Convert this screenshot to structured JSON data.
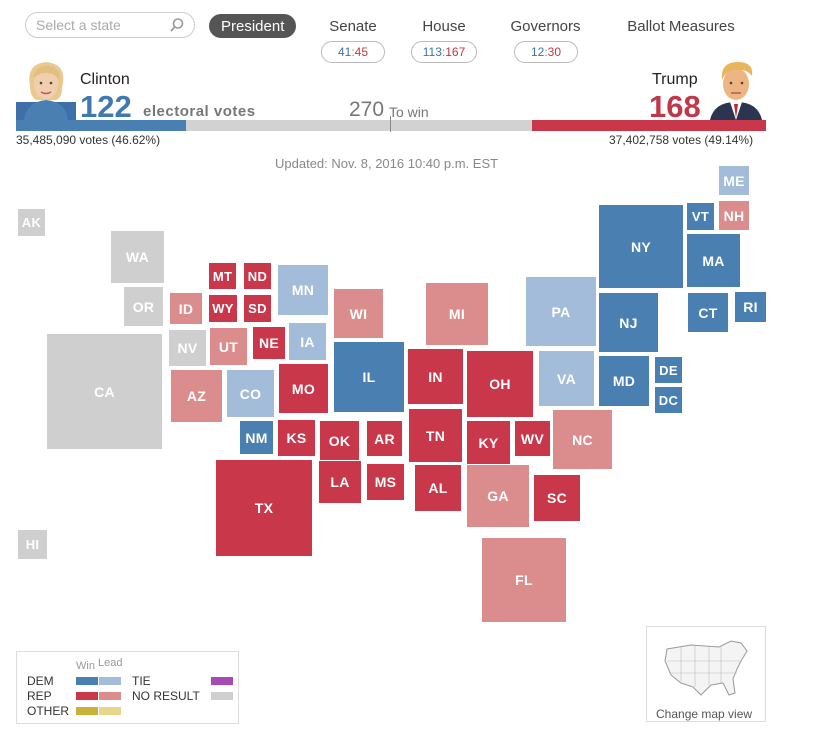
{
  "search": {
    "placeholder": "Select a state"
  },
  "tabs": [
    {
      "label": "President",
      "active": true
    },
    {
      "label": "Senate",
      "dem": "41",
      "rep": "45"
    },
    {
      "label": "House",
      "dem": "113",
      "rep": "167"
    },
    {
      "label": "Governors",
      "dem": "12",
      "rep": "30"
    },
    {
      "label": "Ballot Measures"
    }
  ],
  "pill_separator": ":",
  "dem_candidate": {
    "name": "Clinton",
    "electoral": "122",
    "popular": "35,485,090 votes (46.62%)",
    "electoral_share": 0.2267
  },
  "rep_candidate": {
    "name": "Trump",
    "electoral": "168",
    "popular": "37,402,758 votes (49.14%)",
    "electoral_share": 0.3123
  },
  "electoral_label": "electoral votes",
  "to_win": {
    "number": "270",
    "label": "To win"
  },
  "updated": "Updated: Nov. 8, 2016 10:40 p.m. EST",
  "colors": {
    "dem_win": "#4a7fb1",
    "dem_lead": "#a3bcd9",
    "rep_win": "#c9384a",
    "rep_lead": "#db8d8d",
    "other_win": "#c9b23a",
    "other_lead": "#e6d58a",
    "tie": "#a54bb3",
    "no_result": "#cfcfcf"
  },
  "states": [
    {
      "abbr": "ME",
      "status": "dem_lead"
    },
    {
      "abbr": "VT",
      "status": "dem_win"
    },
    {
      "abbr": "NH",
      "status": "rep_lead"
    },
    {
      "abbr": "NY",
      "status": "dem_win"
    },
    {
      "abbr": "MA",
      "status": "dem_win"
    },
    {
      "abbr": "WA",
      "status": "no_result"
    },
    {
      "abbr": "MT",
      "status": "rep_win"
    },
    {
      "abbr": "ND",
      "status": "rep_win"
    },
    {
      "abbr": "MN",
      "status": "dem_lead"
    },
    {
      "abbr": "OR",
      "status": "no_result"
    },
    {
      "abbr": "ID",
      "status": "rep_lead"
    },
    {
      "abbr": "WY",
      "status": "rep_win"
    },
    {
      "abbr": "SD",
      "status": "rep_win"
    },
    {
      "abbr": "WI",
      "status": "rep_lead"
    },
    {
      "abbr": "MI",
      "status": "rep_lead"
    },
    {
      "abbr": "PA",
      "status": "dem_lead"
    },
    {
      "abbr": "NJ",
      "status": "dem_win"
    },
    {
      "abbr": "CT",
      "status": "dem_win"
    },
    {
      "abbr": "RI",
      "status": "dem_win"
    },
    {
      "abbr": "CA",
      "status": "no_result"
    },
    {
      "abbr": "NV",
      "status": "no_result"
    },
    {
      "abbr": "UT",
      "status": "rep_lead"
    },
    {
      "abbr": "NE",
      "status": "rep_win"
    },
    {
      "abbr": "IA",
      "status": "dem_lead"
    },
    {
      "abbr": "IL",
      "status": "dem_win"
    },
    {
      "abbr": "IN",
      "status": "rep_win"
    },
    {
      "abbr": "OH",
      "status": "rep_win"
    },
    {
      "abbr": "VA",
      "status": "dem_lead"
    },
    {
      "abbr": "MD",
      "status": "dem_win"
    },
    {
      "abbr": "DE",
      "status": "dem_win"
    },
    {
      "abbr": "DC",
      "status": "dem_win"
    },
    {
      "abbr": "AZ",
      "status": "rep_lead"
    },
    {
      "abbr": "CO",
      "status": "dem_lead"
    },
    {
      "abbr": "MO",
      "status": "rep_win"
    },
    {
      "abbr": "KY",
      "status": "rep_win"
    },
    {
      "abbr": "WV",
      "status": "rep_win"
    },
    {
      "abbr": "NC",
      "status": "rep_lead"
    },
    {
      "abbr": "NM",
      "status": "dem_win"
    },
    {
      "abbr": "KS",
      "status": "rep_win"
    },
    {
      "abbr": "OK",
      "status": "rep_win"
    },
    {
      "abbr": "AR",
      "status": "rep_win"
    },
    {
      "abbr": "TN",
      "status": "rep_win"
    },
    {
      "abbr": "TX",
      "status": "rep_win"
    },
    {
      "abbr": "LA",
      "status": "rep_win"
    },
    {
      "abbr": "MS",
      "status": "rep_win"
    },
    {
      "abbr": "AL",
      "status": "rep_win"
    },
    {
      "abbr": "GA",
      "status": "rep_lead"
    },
    {
      "abbr": "SC",
      "status": "rep_win"
    },
    {
      "abbr": "FL",
      "status": "rep_lead"
    },
    {
      "abbr": "AK",
      "status": "no_result"
    },
    {
      "abbr": "HI",
      "status": "no_result"
    }
  ],
  "legend": {
    "win": "Win",
    "lead": "Lead",
    "dem": "DEM",
    "rep": "REP",
    "other": "OTHER",
    "tie": "TIE",
    "no_result": "NO RESULT"
  },
  "map_view_label": "Change map view"
}
